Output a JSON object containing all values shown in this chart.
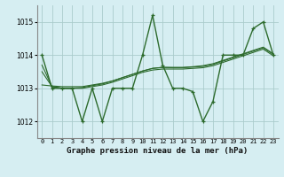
{
  "title": "Graphe pression niveau de la mer (hPa)",
  "x_labels": [
    "0",
    "1",
    "2",
    "3",
    "4",
    "5",
    "6",
    "7",
    "8",
    "9",
    "10",
    "11",
    "12",
    "13",
    "14",
    "15",
    "16",
    "17",
    "18",
    "19",
    "20",
    "21",
    "22",
    "23"
  ],
  "xlim": [
    -0.5,
    23.5
  ],
  "ylim": [
    1011.5,
    1015.5
  ],
  "yticks": [
    1012,
    1013,
    1014,
    1015
  ],
  "bg_color": "#d6eef2",
  "grid_color": "#aacccc",
  "line_color": "#2d6b2d",
  "series": {
    "main": [
      1014,
      1013,
      1013,
      1013,
      1012,
      1013,
      1012,
      1013,
      1013,
      1013,
      1014,
      1015.2,
      1013.7,
      1013,
      1013,
      1012.9,
      1012,
      1012.6,
      1014,
      1014,
      1014,
      1014.8,
      1015,
      1014
    ],
    "smooth1": [
      1013.7,
      1013.05,
      1013.0,
      1013.0,
      1013.0,
      1013.05,
      1013.1,
      1013.18,
      1013.28,
      1013.38,
      1013.48,
      1013.55,
      1013.58,
      1013.58,
      1013.58,
      1013.6,
      1013.62,
      1013.68,
      1013.78,
      1013.88,
      1013.98,
      1014.08,
      1014.18,
      1013.98
    ],
    "smooth2": [
      1013.5,
      1013.05,
      1013.0,
      1013.0,
      1013.02,
      1013.08,
      1013.13,
      1013.22,
      1013.32,
      1013.42,
      1013.52,
      1013.6,
      1013.63,
      1013.62,
      1013.62,
      1013.64,
      1013.66,
      1013.72,
      1013.82,
      1013.92,
      1014.02,
      1014.12,
      1014.22,
      1014.02
    ],
    "smooth3": [
      1013.1,
      1013.07,
      1013.05,
      1013.05,
      1013.05,
      1013.1,
      1013.15,
      1013.22,
      1013.32,
      1013.42,
      1013.52,
      1013.6,
      1013.63,
      1013.63,
      1013.63,
      1013.65,
      1013.68,
      1013.74,
      1013.84,
      1013.94,
      1014.04,
      1014.14,
      1014.24,
      1014.04
    ]
  }
}
